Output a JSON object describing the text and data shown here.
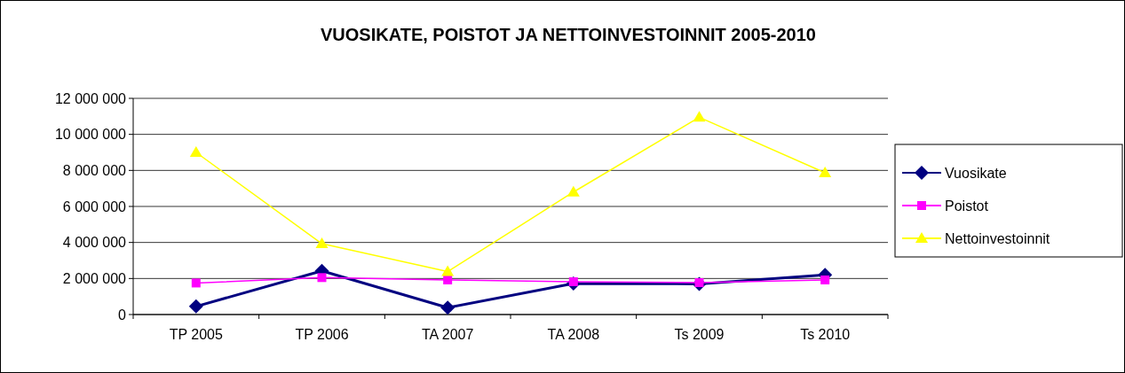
{
  "chart_data": {
    "type": "line",
    "title": "VUOSIKATE, POISTOT JA NETTOINVESTOINNIT 2005-2010",
    "categories": [
      "TP 2005",
      "TP 2006",
      "TA 2007",
      "TA 2008",
      "Ts 2009",
      "Ts 2010"
    ],
    "series": [
      {
        "name": "Vuosikate",
        "color": "#000080",
        "marker": "diamond",
        "values": [
          450000,
          2420000,
          380000,
          1720000,
          1700000,
          2200000
        ]
      },
      {
        "name": "Poistot",
        "color": "#ff00ff",
        "marker": "square",
        "values": [
          1750000,
          2050000,
          1920000,
          1820000,
          1770000,
          1920000
        ]
      },
      {
        "name": "Nettoinvestoinnit",
        "color": "#ffff00",
        "marker": "triangle",
        "values": [
          9000000,
          3930000,
          2380000,
          6800000,
          10950000,
          7870000
        ]
      }
    ],
    "ylim": [
      0,
      12000000
    ],
    "yticks": [
      {
        "value": 0,
        "label": "0"
      },
      {
        "value": 2000000,
        "label": "2 000 000"
      },
      {
        "value": 4000000,
        "label": "4 000 000"
      },
      {
        "value": 6000000,
        "label": "6 000 000"
      },
      {
        "value": 8000000,
        "label": "8 000 000"
      },
      {
        "value": 10000000,
        "label": "10 000 000"
      },
      {
        "value": 12000000,
        "label": "12 000 000"
      }
    ],
    "grid": "y",
    "legend": "right"
  }
}
